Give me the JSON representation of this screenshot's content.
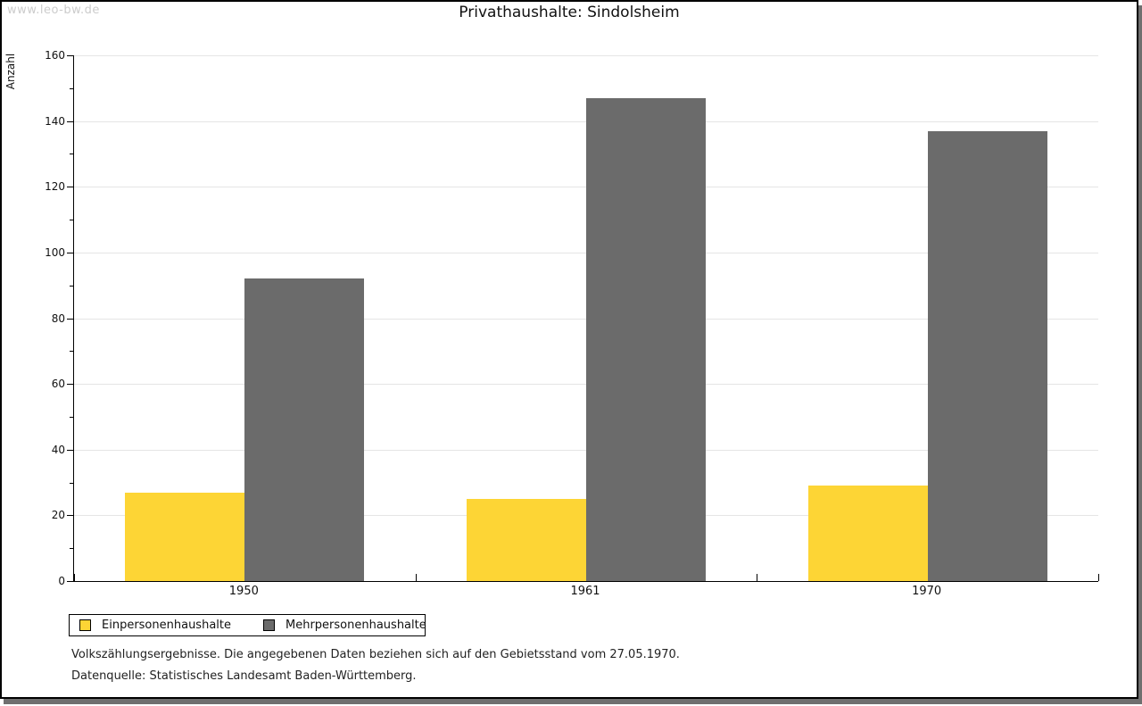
{
  "watermark": "www.leo-bw.de",
  "title": "Privathaushalte: Sindolsheim",
  "chart_data": {
    "type": "bar",
    "title": "Privathaushalte: Sindolsheim",
    "categories": [
      "1950",
      "1961",
      "1970"
    ],
    "series": [
      {
        "name": "Einpersonenhaushalte",
        "color": "#FDD535",
        "values": [
          27,
          25,
          29
        ]
      },
      {
        "name": "Mehrpersonenhaushalte",
        "color": "#6B6B6B",
        "values": [
          92,
          147,
          137
        ]
      }
    ],
    "xlabel": "",
    "ylabel": "Anzahl",
    "ylim": [
      0,
      160
    ],
    "ytick_step": 20,
    "yminor_step": 10,
    "grid": true,
    "gridline_color": "#e5e5e5",
    "legend_position": "bottom-left"
  },
  "footer": {
    "line1": "Volkszählungsergebnisse. Die angegebenen Daten beziehen sich auf den Gebietsstand vom 27.05.1970.",
    "line2": "Datenquelle: Statistisches Landesamt Baden-Württemberg."
  }
}
